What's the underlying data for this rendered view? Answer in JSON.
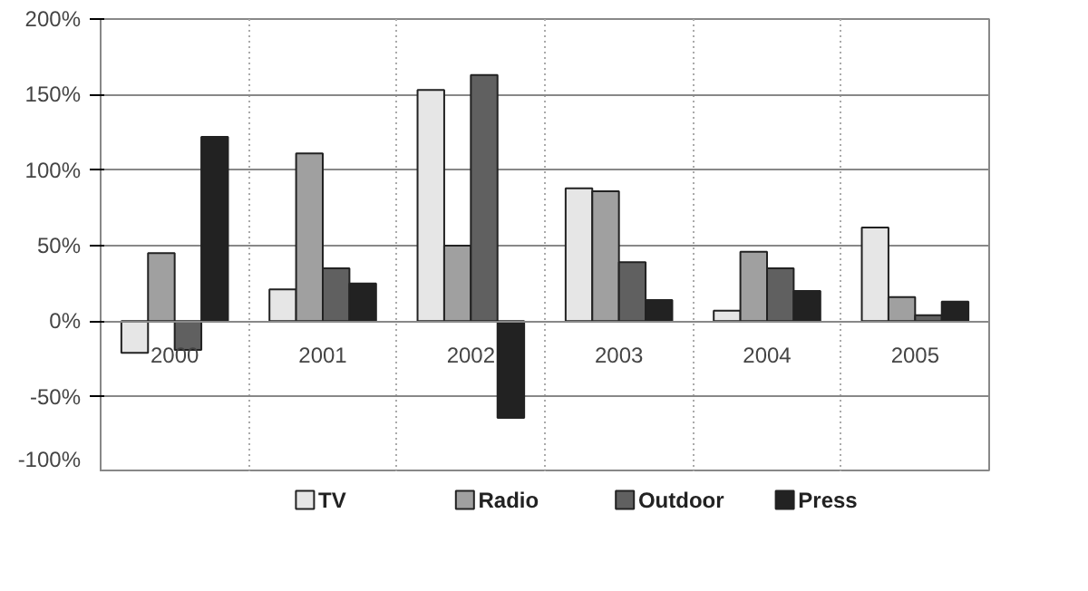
{
  "chart_data": {
    "type": "bar",
    "categories": [
      "2000",
      "2001",
      "2002",
      "2003",
      "2004",
      "2005"
    ],
    "series": [
      {
        "name": "TV",
        "color": "#e6e6e6",
        "values": [
          -21,
          21,
          153,
          88,
          7,
          62
        ]
      },
      {
        "name": "Radio",
        "color": "#a0a0a0",
        "values": [
          45,
          111,
          50,
          86,
          46,
          16
        ]
      },
      {
        "name": "Outdoor",
        "color": "#606060",
        "values": [
          -19,
          35,
          163,
          39,
          35,
          4
        ]
      },
      {
        "name": "Press",
        "color": "#222222",
        "values": [
          122,
          25,
          -64,
          14,
          20,
          13
        ]
      }
    ],
    "ylim": [
      -100,
      200
    ],
    "yticks": [
      {
        "value": -100,
        "label": "-100%"
      },
      {
        "value": -50,
        "label": "-50%"
      },
      {
        "value": 0,
        "label": "0%"
      },
      {
        "value": 50,
        "label": "50%"
      },
      {
        "value": 100,
        "label": "100%"
      },
      {
        "value": 150,
        "label": "150%"
      },
      {
        "value": 200,
        "label": "200%"
      }
    ],
    "grid": true,
    "legend": "bottom"
  }
}
